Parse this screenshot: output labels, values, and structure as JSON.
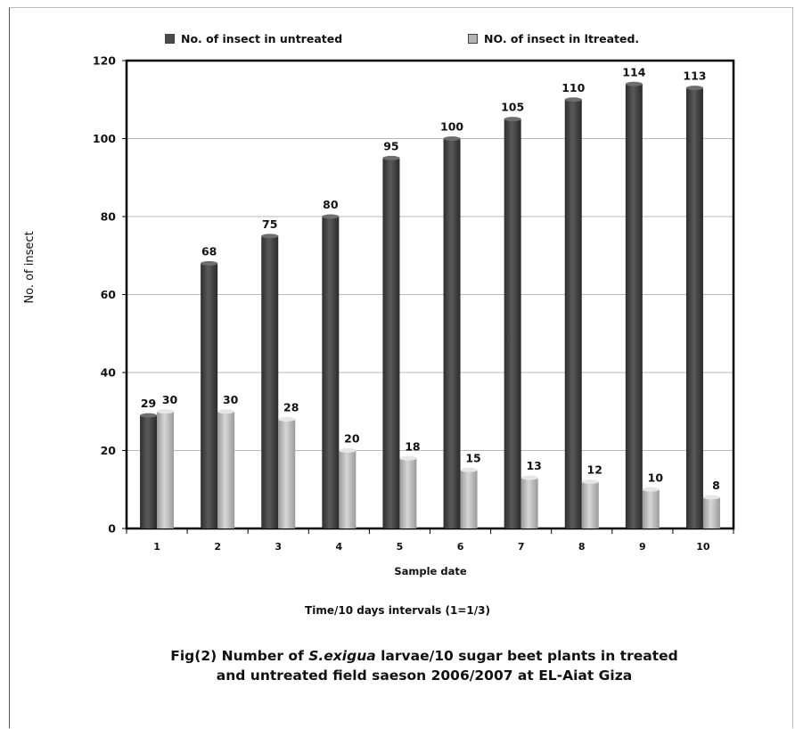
{
  "chart_data": {
    "type": "bar",
    "title": "",
    "categories": [
      "1",
      "2",
      "3",
      "4",
      "5",
      "6",
      "7",
      "8",
      "9",
      "10"
    ],
    "series": [
      {
        "name": "No. of insect in untreated",
        "values": [
          29,
          68,
          75,
          80,
          95,
          100,
          105,
          110,
          114,
          113
        ],
        "color": "#4a4a4a"
      },
      {
        "name": "NO. of insect in ltreated.",
        "values": [
          30,
          30,
          28,
          20,
          18,
          15,
          13,
          12,
          10,
          8
        ],
        "color": "#b4b4b4"
      }
    ],
    "xlabel": "Sample date",
    "ylabel": "No. of insect",
    "ylim": [
      0,
      120
    ],
    "yticks": [
      0,
      20,
      40,
      60,
      80,
      100,
      120
    ],
    "grid": true,
    "legend_position": "top"
  },
  "subtitle": "Time/10 days intervals (1=1/3)",
  "caption": {
    "prefix": "Fig(2) Number of ",
    "species": "S.exigua",
    "suffix": " larvae/10 sugar beet plants in treated",
    "line2": "and untreated field saeson 2006/2007 at EL-Aiat Giza"
  }
}
